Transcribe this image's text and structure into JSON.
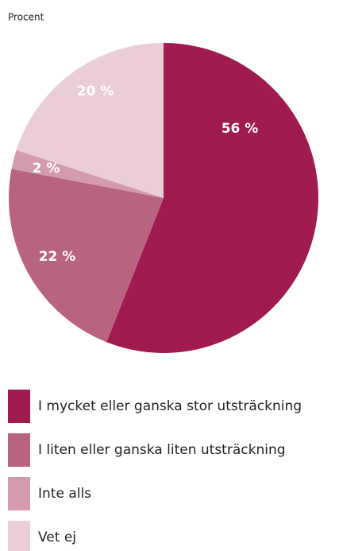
{
  "chart_data": {
    "type": "pie",
    "subtitle": "Procent",
    "categories": [
      "I mycket eller ganska stor utsträckning",
      "I liten eller ganska liten utsträckning",
      "Inte alls",
      "Vet ej"
    ],
    "values": [
      56,
      22,
      2,
      20
    ],
    "value_labels": [
      "56 %",
      "22 %",
      "2 %",
      "20 %"
    ],
    "colors": [
      "#a01c50",
      "#b8637f",
      "#d39cae",
      "#ebcdd8"
    ]
  }
}
